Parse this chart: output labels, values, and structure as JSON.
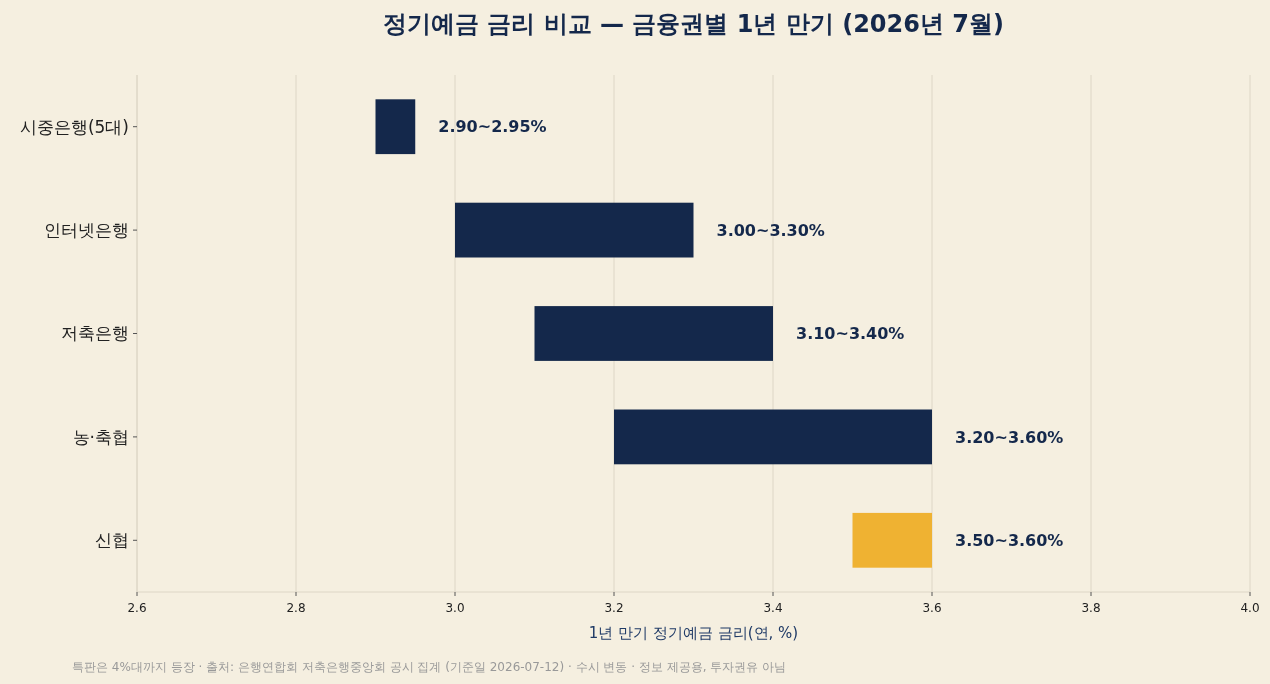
{
  "chart_data": {
    "type": "bar",
    "orientation": "horizontal",
    "title": "정기예금 금리 비교 — 금융권별 1년 만기 (2026년 7월)",
    "xlabel": "1년 만기 정기예금 금리(연, %)",
    "categories": [
      "시중은행(5대)",
      "인터넷은행",
      "저축은행",
      "농·축협",
      "신협"
    ],
    "base": [
      2.9,
      3.0,
      3.1,
      3.2,
      3.5
    ],
    "values": [
      0.05,
      0.3,
      0.3,
      0.4,
      0.1
    ],
    "colors": [
      "#14284b",
      "#14284b",
      "#14284b",
      "#14284b",
      "#efb232"
    ],
    "xlim": [
      2.6,
      4.0
    ],
    "xticks": [
      {
        "value": 2.6,
        "label": "2.6"
      },
      {
        "value": 2.8,
        "label": "2.8"
      },
      {
        "value": 3.0,
        "label": "3.0"
      },
      {
        "value": 3.2,
        "label": "3.2"
      },
      {
        "value": 3.4,
        "label": "3.4"
      },
      {
        "value": 3.6,
        "label": "3.6"
      },
      {
        "value": 3.8,
        "label": "3.8"
      },
      {
        "value": 4.0,
        "label": "4.0"
      }
    ],
    "grid": "x",
    "annotations": [
      {
        "text": "2.90~2.95%",
        "x": 2.95,
        "y": "시중은행(5대)"
      },
      {
        "text": "3.00~3.30%",
        "x": 3.3,
        "y": "인터넷은행"
      },
      {
        "text": "3.10~3.40%",
        "x": 3.4,
        "y": "저축은행"
      },
      {
        "text": "3.20~3.60%",
        "x": 3.6,
        "y": "농·축협"
      },
      {
        "text": "3.50~3.60%",
        "x": 3.6,
        "y": "신협"
      },
      "특판은 4%대까지 등장 · 출처: 은행연합회 저축은행중앙회 공시 집계 (기준일 2026-07-12) · 수시 변동 · 정보 제공용, 투자권유 아님"
    ]
  }
}
